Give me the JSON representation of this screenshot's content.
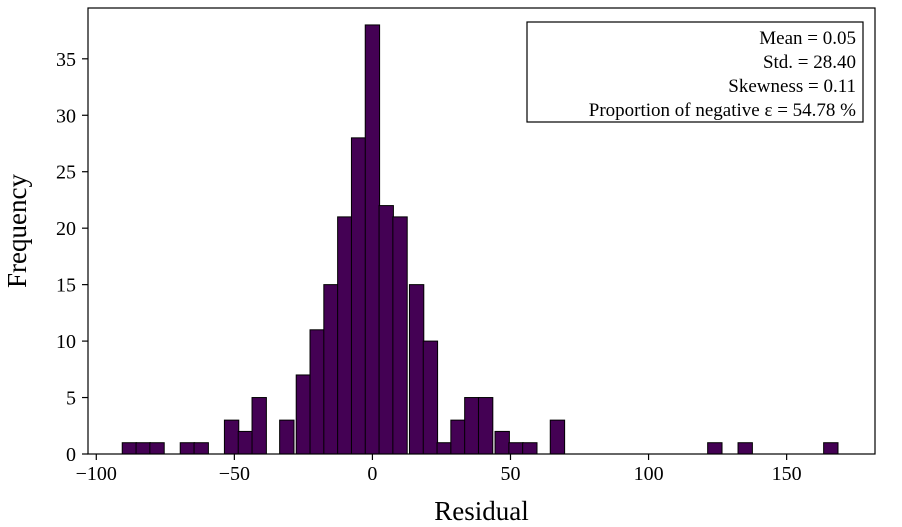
{
  "chart_data": {
    "type": "bar",
    "title": "",
    "xlabel": "Residual",
    "ylabel": "Frequency",
    "xlim": [
      -103,
      182
    ],
    "ylim": [
      0,
      39.5
    ],
    "grid": false,
    "bin_width": 5.2,
    "bar_color": "#440154",
    "x_ticks": [
      -100,
      -50,
      0,
      50,
      100,
      150
    ],
    "x_tick_labels": [
      "−100",
      "−50",
      "0",
      "50",
      "100",
      "150"
    ],
    "y_ticks": [
      0,
      5,
      10,
      15,
      20,
      25,
      30,
      35
    ],
    "y_tick_labels": [
      "0",
      "5",
      "10",
      "15",
      "20",
      "25",
      "30",
      "35"
    ],
    "bins": [
      {
        "x": -88,
        "count": 1
      },
      {
        "x": -83,
        "count": 1
      },
      {
        "x": -78,
        "count": 1
      },
      {
        "x": -67,
        "count": 1
      },
      {
        "x": -62,
        "count": 1
      },
      {
        "x": -51,
        "count": 3
      },
      {
        "x": -46,
        "count": 2
      },
      {
        "x": -41,
        "count": 5
      },
      {
        "x": -31,
        "count": 3
      },
      {
        "x": -25,
        "count": 7
      },
      {
        "x": -20,
        "count": 11
      },
      {
        "x": -15,
        "count": 15
      },
      {
        "x": -10,
        "count": 21
      },
      {
        "x": -5,
        "count": 28
      },
      {
        "x": 0,
        "count": 38
      },
      {
        "x": 5,
        "count": 22
      },
      {
        "x": 10,
        "count": 21
      },
      {
        "x": 16,
        "count": 15
      },
      {
        "x": 21,
        "count": 10
      },
      {
        "x": 26,
        "count": 1
      },
      {
        "x": 31,
        "count": 3
      },
      {
        "x": 36,
        "count": 5
      },
      {
        "x": 41,
        "count": 5
      },
      {
        "x": 47,
        "count": 2
      },
      {
        "x": 52,
        "count": 1
      },
      {
        "x": 57,
        "count": 1
      },
      {
        "x": 67,
        "count": 3
      },
      {
        "x": 124,
        "count": 1
      },
      {
        "x": 135,
        "count": 1
      },
      {
        "x": 166,
        "count": 1
      }
    ],
    "annotation": {
      "location": "top-right",
      "lines": [
        "Mean = 0.05",
        "Std. = 28.40",
        "Skewness = 0.11",
        "Proportion of negative ε = 54.78 %"
      ]
    }
  }
}
